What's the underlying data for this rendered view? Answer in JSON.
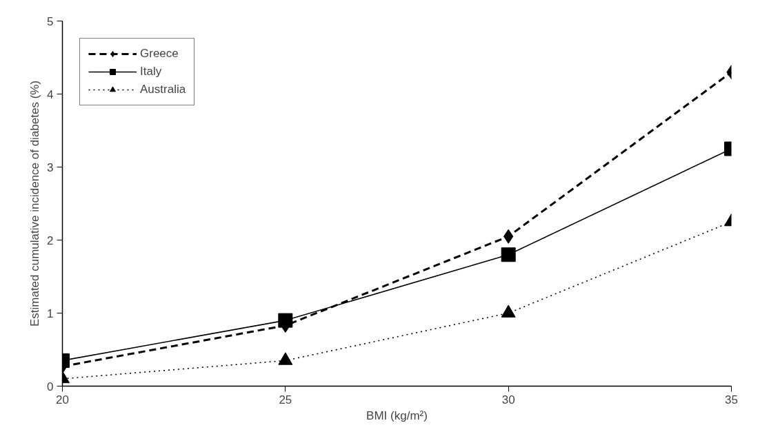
{
  "chart_data": {
    "type": "line",
    "xlabel": "BMI (kg/m²)",
    "ylabel": "Estimated cumulative incidence of diabetes (%)",
    "x": [
      20,
      25,
      30,
      35
    ],
    "xlim": [
      20,
      35
    ],
    "xticks": [
      20,
      25,
      30,
      35
    ],
    "ylim": [
      0,
      5
    ],
    "yticks": [
      0,
      1,
      2,
      3,
      4,
      5
    ],
    "grid": false,
    "legend": "top left",
    "series": [
      {
        "name": "Greece",
        "color": "#000000",
        "values": [
          0.27,
          0.83,
          2.05,
          4.3
        ],
        "marker": "diamond",
        "line_style": "dashed"
      },
      {
        "name": "Italy",
        "color": "#000000",
        "values": [
          0.35,
          0.9,
          1.8,
          3.25
        ],
        "marker": "square",
        "line_style": "solid"
      },
      {
        "name": "Australia",
        "color": "#000000",
        "values": [
          0.1,
          0.35,
          1.0,
          2.25
        ],
        "marker": "triangle",
        "line_style": "dotted"
      }
    ]
  }
}
